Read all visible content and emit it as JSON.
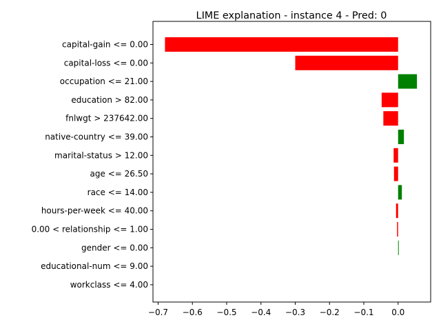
{
  "chart_data": {
    "type": "bar",
    "orientation": "horizontal",
    "title": "LIME explanation - instance 4 - Pred: 0",
    "xlabel": "",
    "ylabel": "",
    "xlim": [
      -0.715,
      0.095
    ],
    "xticks": [
      -0.7,
      -0.6,
      -0.5,
      -0.4,
      -0.3,
      -0.2,
      -0.1,
      0.0
    ],
    "xtick_labels": [
      "−0.7",
      "−0.6",
      "−0.5",
      "−0.4",
      "−0.3",
      "−0.2",
      "−0.1",
      "0.0"
    ],
    "grid": false,
    "categories": [
      "capital-gain <= 0.00",
      "capital-loss <= 0.00",
      "occupation <= 21.00",
      "education > 82.00",
      "fnlwgt > 237642.00",
      "native-country <= 39.00",
      "marital-status > 12.00",
      "age <= 26.50",
      "race <= 14.00",
      "hours-per-week <= 40.00",
      "0.00 < relationship <= 1.00",
      "gender <= 0.00",
      "educational-num <= 9.00",
      "workclass <= 4.00"
    ],
    "values": [
      -0.68,
      -0.3,
      0.055,
      -0.048,
      -0.043,
      0.017,
      -0.013,
      -0.012,
      0.011,
      -0.006,
      -0.003,
      0.002,
      0.0,
      0.0
    ],
    "colors": {
      "positive": "#008000",
      "negative": "#ff0000"
    }
  }
}
